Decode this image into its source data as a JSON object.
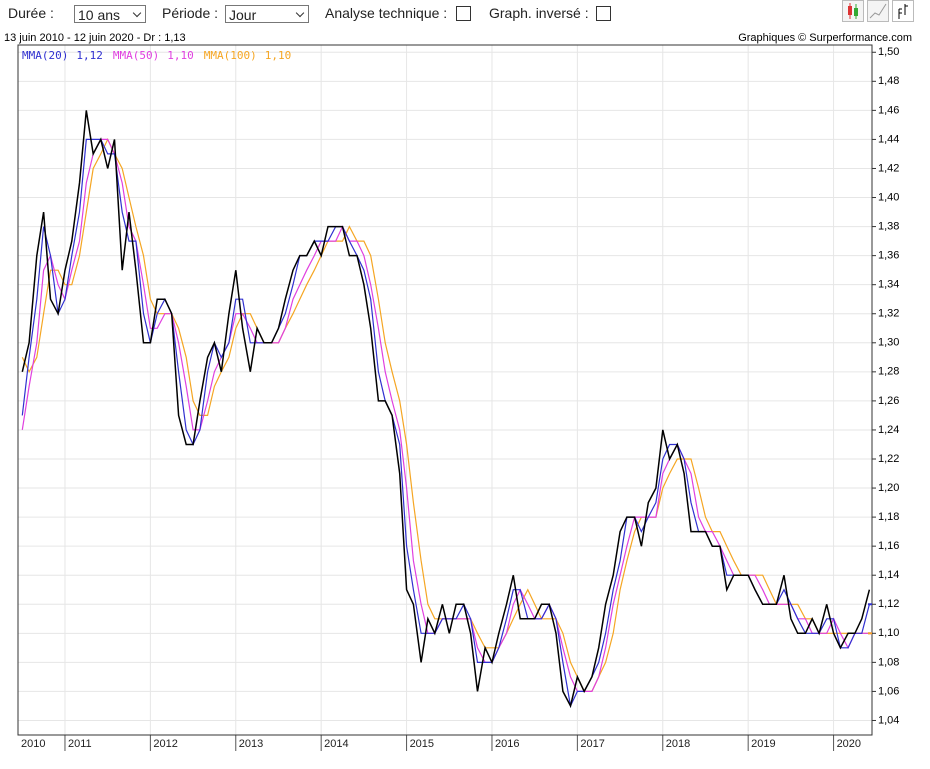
{
  "controls": {
    "duration_label": "Durée :",
    "duration": "10 ans",
    "period_label": "Période :",
    "period": "Jour",
    "technical_label": "Analyse technique :",
    "inverted_label": "Graph. inversé :"
  },
  "chart_data": {
    "type": "line",
    "subtitle": "13 juin 2010 - 12 juin 2020 - Dr : 1,13",
    "credit": "Graphiques © Surperformance.com",
    "x": [
      2010.5,
      2010.58,
      2010.67,
      2010.75,
      2010.83,
      2010.92,
      2011.0,
      2011.08,
      2011.17,
      2011.25,
      2011.33,
      2011.42,
      2011.5,
      2011.58,
      2011.67,
      2011.75,
      2011.83,
      2011.92,
      2012.0,
      2012.08,
      2012.17,
      2012.25,
      2012.33,
      2012.42,
      2012.5,
      2012.58,
      2012.67,
      2012.75,
      2012.83,
      2012.92,
      2013.0,
      2013.08,
      2013.17,
      2013.25,
      2013.33,
      2013.42,
      2013.5,
      2013.58,
      2013.67,
      2013.75,
      2013.83,
      2013.92,
      2014.0,
      2014.08,
      2014.17,
      2014.25,
      2014.33,
      2014.42,
      2014.5,
      2014.58,
      2014.67,
      2014.75,
      2014.83,
      2014.92,
      2015.0,
      2015.08,
      2015.17,
      2015.25,
      2015.33,
      2015.42,
      2015.5,
      2015.58,
      2015.67,
      2015.75,
      2015.83,
      2015.92,
      2016.0,
      2016.08,
      2016.17,
      2016.25,
      2016.33,
      2016.42,
      2016.5,
      2016.58,
      2016.67,
      2016.75,
      2016.83,
      2016.92,
      2017.0,
      2017.08,
      2017.17,
      2017.25,
      2017.33,
      2017.42,
      2017.5,
      2017.58,
      2017.67,
      2017.75,
      2017.83,
      2017.92,
      2018.0,
      2018.08,
      2018.17,
      2018.25,
      2018.33,
      2018.42,
      2018.5,
      2018.58,
      2018.67,
      2018.75,
      2018.83,
      2018.92,
      2019.0,
      2019.08,
      2019.17,
      2019.25,
      2019.33,
      2019.42,
      2019.5,
      2019.58,
      2019.67,
      2019.75,
      2019.83,
      2019.92,
      2020.0,
      2020.08,
      2020.17,
      2020.25,
      2020.33,
      2020.42
    ],
    "series": [
      {
        "color": "#000000",
        "values": [
          1.28,
          1.3,
          1.36,
          1.39,
          1.33,
          1.32,
          1.35,
          1.37,
          1.41,
          1.46,
          1.43,
          1.44,
          1.42,
          1.44,
          1.35,
          1.39,
          1.35,
          1.3,
          1.3,
          1.33,
          1.33,
          1.32,
          1.25,
          1.23,
          1.23,
          1.26,
          1.29,
          1.3,
          1.28,
          1.32,
          1.35,
          1.31,
          1.28,
          1.31,
          1.3,
          1.3,
          1.31,
          1.33,
          1.35,
          1.36,
          1.36,
          1.37,
          1.36,
          1.38,
          1.38,
          1.38,
          1.36,
          1.36,
          1.34,
          1.31,
          1.26,
          1.26,
          1.25,
          1.21,
          1.13,
          1.12,
          1.08,
          1.11,
          1.1,
          1.12,
          1.1,
          1.12,
          1.12,
          1.1,
          1.06,
          1.09,
          1.08,
          1.1,
          1.12,
          1.14,
          1.11,
          1.11,
          1.11,
          1.12,
          1.12,
          1.1,
          1.06,
          1.05,
          1.07,
          1.06,
          1.07,
          1.09,
          1.12,
          1.14,
          1.17,
          1.18,
          1.18,
          1.16,
          1.19,
          1.2,
          1.24,
          1.22,
          1.23,
          1.21,
          1.17,
          1.17,
          1.17,
          1.16,
          1.16,
          1.13,
          1.14,
          1.14,
          1.14,
          1.13,
          1.12,
          1.12,
          1.12,
          1.14,
          1.11,
          1.1,
          1.1,
          1.11,
          1.1,
          1.12,
          1.1,
          1.09,
          1.1,
          1.1,
          1.11,
          1.13
        ]
      },
      {
        "name": "MMA(20)",
        "color": "#3030d0",
        "current": {
          "value": 1.12,
          "label": "1,12"
        },
        "values": [
          1.25,
          1.29,
          1.33,
          1.38,
          1.36,
          1.32,
          1.33,
          1.36,
          1.39,
          1.44,
          1.44,
          1.44,
          1.43,
          1.43,
          1.39,
          1.37,
          1.37,
          1.32,
          1.3,
          1.32,
          1.33,
          1.32,
          1.28,
          1.24,
          1.23,
          1.24,
          1.28,
          1.3,
          1.29,
          1.3,
          1.33,
          1.33,
          1.3,
          1.3,
          1.3,
          1.3,
          1.31,
          1.32,
          1.34,
          1.36,
          1.36,
          1.37,
          1.37,
          1.37,
          1.38,
          1.38,
          1.37,
          1.36,
          1.35,
          1.33,
          1.28,
          1.26,
          1.25,
          1.23,
          1.16,
          1.13,
          1.1,
          1.1,
          1.1,
          1.11,
          1.11,
          1.11,
          1.12,
          1.11,
          1.08,
          1.08,
          1.08,
          1.09,
          1.11,
          1.13,
          1.13,
          1.11,
          1.11,
          1.11,
          1.12,
          1.11,
          1.08,
          1.05,
          1.06,
          1.06,
          1.07,
          1.08,
          1.1,
          1.13,
          1.15,
          1.18,
          1.18,
          1.17,
          1.18,
          1.19,
          1.22,
          1.23,
          1.23,
          1.22,
          1.19,
          1.17,
          1.17,
          1.16,
          1.16,
          1.14,
          1.14,
          1.14,
          1.14,
          1.13,
          1.12,
          1.12,
          1.12,
          1.13,
          1.12,
          1.11,
          1.1,
          1.1,
          1.1,
          1.11,
          1.11,
          1.09,
          1.09,
          1.1,
          1.1,
          1.12
        ]
      },
      {
        "name": "MMA(50)",
        "color": "#e040e0",
        "current": {
          "value": 1.1,
          "label": "1,10"
        },
        "values": [
          1.24,
          1.27,
          1.3,
          1.35,
          1.36,
          1.34,
          1.33,
          1.35,
          1.37,
          1.41,
          1.43,
          1.44,
          1.44,
          1.43,
          1.41,
          1.38,
          1.37,
          1.34,
          1.31,
          1.31,
          1.32,
          1.32,
          1.3,
          1.27,
          1.24,
          1.24,
          1.26,
          1.28,
          1.29,
          1.3,
          1.32,
          1.32,
          1.31,
          1.3,
          1.3,
          1.3,
          1.3,
          1.31,
          1.33,
          1.34,
          1.35,
          1.36,
          1.37,
          1.37,
          1.37,
          1.38,
          1.37,
          1.37,
          1.36,
          1.34,
          1.31,
          1.28,
          1.26,
          1.24,
          1.2,
          1.15,
          1.12,
          1.1,
          1.1,
          1.11,
          1.11,
          1.11,
          1.11,
          1.11,
          1.09,
          1.08,
          1.08,
          1.09,
          1.1,
          1.12,
          1.13,
          1.12,
          1.11,
          1.11,
          1.12,
          1.11,
          1.09,
          1.07,
          1.06,
          1.06,
          1.06,
          1.07,
          1.09,
          1.12,
          1.14,
          1.16,
          1.18,
          1.18,
          1.18,
          1.18,
          1.21,
          1.22,
          1.23,
          1.22,
          1.21,
          1.18,
          1.17,
          1.17,
          1.16,
          1.15,
          1.14,
          1.14,
          1.14,
          1.14,
          1.13,
          1.12,
          1.12,
          1.12,
          1.12,
          1.11,
          1.11,
          1.1,
          1.1,
          1.1,
          1.11,
          1.1,
          1.09,
          1.1,
          1.1,
          1.1
        ]
      },
      {
        "name": "MMA(100)",
        "color": "#f5a623",
        "current": {
          "value": 1.1,
          "label": "1,10"
        },
        "values": [
          1.29,
          1.28,
          1.29,
          1.32,
          1.35,
          1.35,
          1.34,
          1.34,
          1.36,
          1.39,
          1.42,
          1.43,
          1.44,
          1.43,
          1.42,
          1.4,
          1.38,
          1.36,
          1.33,
          1.32,
          1.32,
          1.32,
          1.31,
          1.29,
          1.26,
          1.25,
          1.25,
          1.27,
          1.28,
          1.29,
          1.31,
          1.32,
          1.32,
          1.31,
          1.3,
          1.3,
          1.3,
          1.31,
          1.32,
          1.33,
          1.34,
          1.35,
          1.36,
          1.37,
          1.37,
          1.37,
          1.38,
          1.37,
          1.37,
          1.36,
          1.33,
          1.3,
          1.28,
          1.26,
          1.23,
          1.19,
          1.15,
          1.12,
          1.11,
          1.11,
          1.11,
          1.11,
          1.11,
          1.11,
          1.1,
          1.09,
          1.09,
          1.09,
          1.1,
          1.11,
          1.12,
          1.13,
          1.12,
          1.11,
          1.11,
          1.11,
          1.1,
          1.08,
          1.07,
          1.06,
          1.06,
          1.07,
          1.08,
          1.1,
          1.13,
          1.15,
          1.17,
          1.18,
          1.18,
          1.18,
          1.2,
          1.21,
          1.22,
          1.22,
          1.22,
          1.2,
          1.18,
          1.17,
          1.17,
          1.16,
          1.15,
          1.14,
          1.14,
          1.14,
          1.14,
          1.13,
          1.12,
          1.12,
          1.12,
          1.12,
          1.11,
          1.11,
          1.1,
          1.1,
          1.1,
          1.1,
          1.1,
          1.1,
          1.1,
          1.1
        ]
      }
    ],
    "xlim": [
      2010.45,
      2020.45
    ],
    "xticks": [
      2010,
      2011,
      2012,
      2013,
      2014,
      2015,
      2016,
      2017,
      2018,
      2019,
      2020
    ],
    "ylim": [
      1.03,
      1.505
    ],
    "yticks": [
      {
        "value": 1.04,
        "label": "1,04"
      },
      {
        "value": 1.06,
        "label": "1,06"
      },
      {
        "value": 1.08,
        "label": "1,08"
      },
      {
        "value": 1.1,
        "label": "1,10"
      },
      {
        "value": 1.12,
        "label": "1,12"
      },
      {
        "value": 1.14,
        "label": "1,14"
      },
      {
        "value": 1.16,
        "label": "1,16"
      },
      {
        "value": 1.18,
        "label": "1,18"
      },
      {
        "value": 1.2,
        "label": "1,20"
      },
      {
        "value": 1.22,
        "label": "1,22"
      },
      {
        "value": 1.24,
        "label": "1,24"
      },
      {
        "value": 1.26,
        "label": "1,26"
      },
      {
        "value": 1.28,
        "label": "1,28"
      },
      {
        "value": 1.3,
        "label": "1,30"
      },
      {
        "value": 1.32,
        "label": "1,32"
      },
      {
        "value": 1.34,
        "label": "1,34"
      },
      {
        "value": 1.36,
        "label": "1,36"
      },
      {
        "value": 1.38,
        "label": "1,38"
      },
      {
        "value": 1.4,
        "label": "1,40"
      },
      {
        "value": 1.42,
        "label": "1,42"
      },
      {
        "value": 1.44,
        "label": "1,44"
      },
      {
        "value": 1.46,
        "label": "1,46"
      },
      {
        "value": 1.48,
        "label": "1,48"
      },
      {
        "value": 1.5,
        "label": "1,50"
      }
    ],
    "grid": true
  }
}
